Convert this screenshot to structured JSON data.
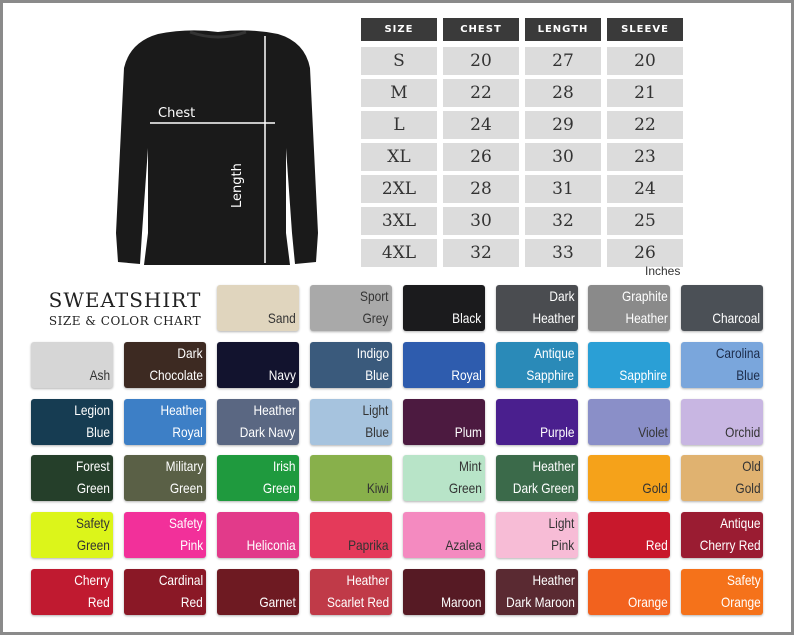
{
  "diagram": {
    "chest_label": "Chest",
    "length_label": "Length"
  },
  "size_table": {
    "headers": [
      "SIZE",
      "CHEST",
      "LENGTH",
      "SLEEVE"
    ],
    "rows": [
      [
        "S",
        "20",
        "27",
        "20"
      ],
      [
        "M",
        "22",
        "28",
        "21"
      ],
      [
        "L",
        "24",
        "29",
        "22"
      ],
      [
        "XL",
        "26",
        "30",
        "23"
      ],
      [
        "2XL",
        "28",
        "31",
        "24"
      ],
      [
        "3XL",
        "30",
        "32",
        "25"
      ],
      [
        "4XL",
        "32",
        "33",
        "26"
      ]
    ],
    "unit": "Inches"
  },
  "title": {
    "line1": "SWEATSHIRT",
    "line2": "SIZE & COLOR CHART"
  },
  "colors": [
    {
      "name": "Sand",
      "hex": "#e0d5be",
      "text": "#333"
    },
    {
      "name": "Sport Grey",
      "hex": "#a9a9a9",
      "text": "#333"
    },
    {
      "name": "Black",
      "hex": "#1b1b1d",
      "text": "#fff"
    },
    {
      "name": "Dark Heather",
      "hex": "#4a4c50",
      "text": "#fff"
    },
    {
      "name": "Graphite Heather",
      "hex": "#8a8a8a",
      "text": "#fff"
    },
    {
      "name": "Charcoal",
      "hex": "#4b5056",
      "text": "#fff"
    },
    {
      "name": "Ash",
      "hex": "#d6d6d6",
      "text": "#333"
    },
    {
      "name": "Dark Chocolate",
      "hex": "#3d2a22",
      "text": "#fff"
    },
    {
      "name": "Navy",
      "hex": "#12132e",
      "text": "#fff"
    },
    {
      "name": "Indigo Blue",
      "hex": "#3a5a7c",
      "text": "#fff"
    },
    {
      "name": "Royal",
      "hex": "#2e5cae",
      "text": "#fff"
    },
    {
      "name": "Antique Sapphire",
      "hex": "#2a8ab8",
      "text": "#fff"
    },
    {
      "name": "Sapphire",
      "hex": "#2a9fd6",
      "text": "#fff"
    },
    {
      "name": "Carolina Blue",
      "hex": "#7aa6dc",
      "text": "#1c2c4a"
    },
    {
      "name": "Legion Blue",
      "hex": "#163c52",
      "text": "#fff"
    },
    {
      "name": "Heather Royal",
      "hex": "#3d7fc6",
      "text": "#fff"
    },
    {
      "name": "Heather Dark Navy",
      "hex": "#5a6782",
      "text": "#fff"
    },
    {
      "name": "Light Blue",
      "hex": "#a6c3de",
      "text": "#333"
    },
    {
      "name": "Plum",
      "hex": "#4c1a40",
      "text": "#fff"
    },
    {
      "name": "Purple",
      "hex": "#4a1f8e",
      "text": "#fff"
    },
    {
      "name": "Violet",
      "hex": "#8a8fc8",
      "text": "#333"
    },
    {
      "name": "Orchid",
      "hex": "#c8b6e2",
      "text": "#333"
    },
    {
      "name": "Forest Green",
      "hex": "#253f2a",
      "text": "#fff"
    },
    {
      "name": "Military Green",
      "hex": "#5a6046",
      "text": "#fff"
    },
    {
      "name": "Irish Green",
      "hex": "#1f9a3e",
      "text": "#fff"
    },
    {
      "name": "Kiwi",
      "hex": "#88b04b",
      "text": "#333"
    },
    {
      "name": "Mint Green",
      "hex": "#b8e4c8",
      "text": "#333"
    },
    {
      "name": "Heather Dark Green",
      "hex": "#3b6a4a",
      "text": "#fff"
    },
    {
      "name": "Gold",
      "hex": "#f5a21a",
      "text": "#333"
    },
    {
      "name": "Old Gold",
      "hex": "#e0b270",
      "text": "#333"
    },
    {
      "name": "Safety Green",
      "hex": "#dcf51a",
      "text": "#333"
    },
    {
      "name": "Safety Pink",
      "hex": "#f2309a",
      "text": "#fff"
    },
    {
      "name": "Heliconia",
      "hex": "#e23a8a",
      "text": "#fff"
    },
    {
      "name": "Paprika",
      "hex": "#e43a5a",
      "text": "#333"
    },
    {
      "name": "Azalea",
      "hex": "#f48ac0",
      "text": "#333"
    },
    {
      "name": "Light Pink",
      "hex": "#f7bcd6",
      "text": "#333"
    },
    {
      "name": "Red",
      "hex": "#c8182c",
      "text": "#fff"
    },
    {
      "name": "Antique Cherry Red",
      "hex": "#9a1c32",
      "text": "#fff"
    },
    {
      "name": "Cherry Red",
      "hex": "#c01a30",
      "text": "#fff"
    },
    {
      "name": "Cardinal Red",
      "hex": "#8a1826",
      "text": "#fff"
    },
    {
      "name": "Garnet",
      "hex": "#6e1a22",
      "text": "#fff"
    },
    {
      "name": "Heather Scarlet Red",
      "hex": "#c03a48",
      "text": "#fff"
    },
    {
      "name": "Maroon",
      "hex": "#561a24",
      "text": "#fff"
    },
    {
      "name": "Heather Dark Maroon",
      "hex": "#5a2a32",
      "text": "#fff"
    },
    {
      "name": "Orange",
      "hex": "#f2621e",
      "text": "#fff"
    },
    {
      "name": "Safety Orange",
      "hex": "#f5721a",
      "text": "#fff"
    }
  ]
}
